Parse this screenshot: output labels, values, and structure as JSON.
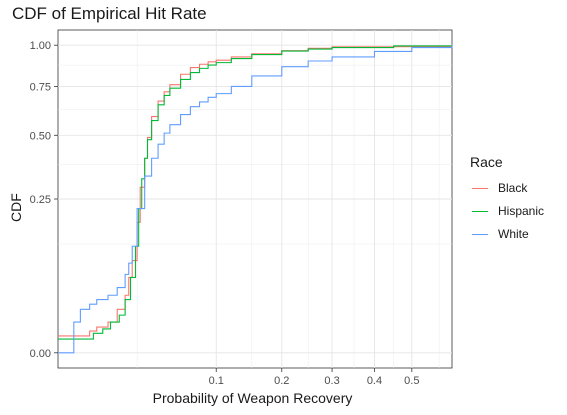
{
  "chart_data": {
    "type": "line",
    "title": "CDF of Empirical Hit Rate",
    "xlabel": "Probability of Weapon Recovery",
    "ylabel": "CDF",
    "x_scale": "sqrt",
    "y_scale": "sqrt",
    "xlim": [
      0,
      0.62
    ],
    "ylim": [
      0,
      1.0
    ],
    "x_ticks": [
      0.1,
      0.2,
      0.3,
      0.4,
      0.5
    ],
    "x_tick_labels": [
      "0.1",
      "0.2",
      "0.3",
      "0.4",
      "0.5"
    ],
    "y_ticks": [
      0.0,
      0.25,
      0.5,
      0.75,
      1.0
    ],
    "y_tick_labels": [
      "0.00",
      "0.25",
      "0.50",
      "0.75",
      "1.00"
    ],
    "grid": true,
    "legend": {
      "title": "Race",
      "position": "right"
    },
    "series": [
      {
        "name": "Black",
        "color": "#F8766D",
        "x": [
          0.0,
          0.004,
          0.006,
          0.01,
          0.014,
          0.018,
          0.02,
          0.022,
          0.025,
          0.027,
          0.03,
          0.032,
          0.035,
          0.04,
          0.045,
          0.05,
          0.06,
          0.07,
          0.08,
          0.09,
          0.1,
          0.12,
          0.15,
          0.2,
          0.25,
          0.3,
          0.62
        ],
        "y": [
          0.003,
          0.005,
          0.007,
          0.01,
          0.02,
          0.035,
          0.06,
          0.09,
          0.18,
          0.29,
          0.4,
          0.49,
          0.59,
          0.67,
          0.72,
          0.76,
          0.82,
          0.86,
          0.88,
          0.895,
          0.905,
          0.925,
          0.945,
          0.965,
          0.98,
          0.99,
          1.0
        ]
      },
      {
        "name": "Hispanic",
        "color": "#00BA38",
        "x": [
          0.0,
          0.005,
          0.008,
          0.011,
          0.015,
          0.018,
          0.021,
          0.024,
          0.026,
          0.028,
          0.03,
          0.032,
          0.035,
          0.04,
          0.045,
          0.05,
          0.06,
          0.07,
          0.08,
          0.09,
          0.1,
          0.12,
          0.15,
          0.2,
          0.25,
          0.3,
          0.45,
          0.62
        ],
        "y": [
          0.002,
          0.004,
          0.006,
          0.01,
          0.015,
          0.03,
          0.06,
          0.12,
          0.22,
          0.32,
          0.4,
          0.48,
          0.57,
          0.65,
          0.7,
          0.74,
          0.79,
          0.83,
          0.855,
          0.875,
          0.89,
          0.915,
          0.94,
          0.962,
          0.975,
          0.985,
          0.995,
          1.0
        ]
      },
      {
        "name": "White",
        "color": "#619CFF",
        "x": [
          0.0,
          0.001,
          0.002,
          0.004,
          0.006,
          0.01,
          0.014,
          0.018,
          0.02,
          0.022,
          0.025,
          0.03,
          0.035,
          0.04,
          0.045,
          0.05,
          0.06,
          0.07,
          0.08,
          0.09,
          0.1,
          0.12,
          0.15,
          0.2,
          0.25,
          0.3,
          0.4,
          0.5,
          0.62
        ],
        "y": [
          0.0,
          0.01,
          0.02,
          0.025,
          0.03,
          0.035,
          0.045,
          0.065,
          0.085,
          0.12,
          0.22,
          0.33,
          0.4,
          0.46,
          0.51,
          0.55,
          0.6,
          0.64,
          0.665,
          0.69,
          0.71,
          0.75,
          0.81,
          0.865,
          0.9,
          0.925,
          0.96,
          0.985,
          1.0
        ]
      }
    ]
  }
}
